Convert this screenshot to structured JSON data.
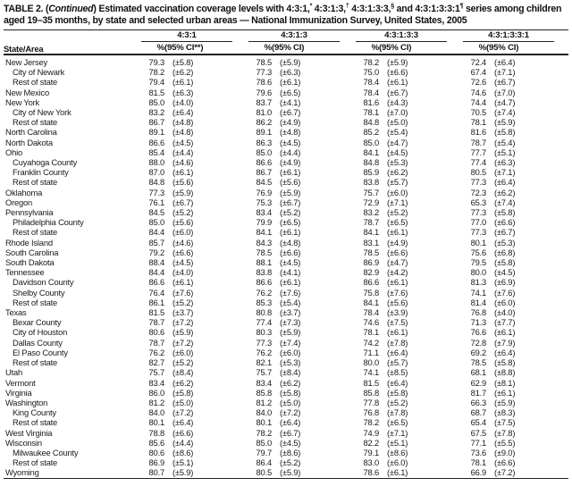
{
  "table": {
    "title": {
      "label_prefix": "TABLE 2. (",
      "continued": "Continued",
      "after_paren": ") Estimated vaccination coverage levels with ",
      "series": [
        {
          "text": "4:3:1,",
          "sup": "*"
        },
        {
          "text": " 4:3:1:3,",
          "sup": "†"
        },
        {
          "text": " 4:3:1:3:3,",
          "sup": "§"
        },
        {
          "text": " and 4:3:1:3:3:1",
          "sup": "¶"
        }
      ],
      "tail": " series among children aged 19–35 months, by state and selected urban areas — National Immunization Survey, United States, 2005"
    },
    "column_groups": [
      "4:3:1",
      "4:3:1:3",
      "4:3:1:3:3",
      "4:3:1:3:3:1"
    ],
    "subheaders": {
      "state_area": "State/Area",
      "pct": "%",
      "ci_first": "(95% CI**)",
      "ci": "(95% CI)"
    },
    "rows": [
      {
        "label": "New Jersey",
        "indent": 0,
        "values": [
          "79.3",
          "(±5.8)",
          "78.5",
          "(±5.9)",
          "78.2",
          "(±5.9)",
          "72.4",
          "(±6.4)"
        ]
      },
      {
        "label": "City of Newark",
        "indent": 1,
        "values": [
          "78.2",
          "(±6.2)",
          "77.3",
          "(±6.3)",
          "75.0",
          "(±6.6)",
          "67.4",
          "(±7.1)"
        ]
      },
      {
        "label": "Rest of state",
        "indent": 1,
        "values": [
          "79.4",
          "(±6.1)",
          "78.6",
          "(±6.1)",
          "78.4",
          "(±6.1)",
          "72.6",
          "(±6.7)"
        ]
      },
      {
        "label": "New Mexico",
        "indent": 0,
        "values": [
          "81.5",
          "(±6.3)",
          "79.6",
          "(±6.5)",
          "78.4",
          "(±6.7)",
          "74.6",
          "(±7.0)"
        ]
      },
      {
        "label": "New York",
        "indent": 0,
        "values": [
          "85.0",
          "(±4.0)",
          "83.7",
          "(±4.1)",
          "81.6",
          "(±4.3)",
          "74.4",
          "(±4.7)"
        ]
      },
      {
        "label": "City of New York",
        "indent": 1,
        "values": [
          "83.2",
          "(±6.4)",
          "81.0",
          "(±6.7)",
          "78.1",
          "(±7.0)",
          "70.5",
          "(±7.4)"
        ]
      },
      {
        "label": "Rest of state",
        "indent": 1,
        "values": [
          "86.7",
          "(±4.8)",
          "86.2",
          "(±4.9)",
          "84.8",
          "(±5.0)",
          "78.1",
          "(±5.9)"
        ]
      },
      {
        "label": "North Carolina",
        "indent": 0,
        "values": [
          "89.1",
          "(±4.8)",
          "89.1",
          "(±4.8)",
          "85.2",
          "(±5.4)",
          "81.6",
          "(±5.8)"
        ]
      },
      {
        "label": "North Dakota",
        "indent": 0,
        "values": [
          "86.6",
          "(±4.5)",
          "86.3",
          "(±4.5)",
          "85.0",
          "(±4.7)",
          "78.7",
          "(±5.4)"
        ]
      },
      {
        "label": "Ohio",
        "indent": 0,
        "values": [
          "85.4",
          "(±4.4)",
          "85.0",
          "(±4.4)",
          "84.1",
          "(±4.5)",
          "77.7",
          "(±5.1)"
        ]
      },
      {
        "label": "Cuyahoga County",
        "indent": 1,
        "values": [
          "88.0",
          "(±4.6)",
          "86.6",
          "(±4.9)",
          "84.8",
          "(±5.3)",
          "77.4",
          "(±6.3)"
        ]
      },
      {
        "label": "Franklin County",
        "indent": 1,
        "values": [
          "87.0",
          "(±6.1)",
          "86.7",
          "(±6.1)",
          "85.9",
          "(±6.2)",
          "80.5",
          "(±7.1)"
        ]
      },
      {
        "label": "Rest of state",
        "indent": 1,
        "values": [
          "84.8",
          "(±5.6)",
          "84.5",
          "(±5.6)",
          "83.8",
          "(±5.7)",
          "77.3",
          "(±6.4)"
        ]
      },
      {
        "label": "Oklahoma",
        "indent": 0,
        "values": [
          "77.3",
          "(±5.9)",
          "76.9",
          "(±5.9)",
          "75.7",
          "(±6.0)",
          "72.3",
          "(±6.2)"
        ]
      },
      {
        "label": "Oregon",
        "indent": 0,
        "values": [
          "76.1",
          "(±6.7)",
          "75.3",
          "(±6.7)",
          "72.9",
          "(±7.1)",
          "65.3",
          "(±7.4)"
        ]
      },
      {
        "label": "Pennsylvania",
        "indent": 0,
        "values": [
          "84.5",
          "(±5.2)",
          "83.4",
          "(±5.2)",
          "83.2",
          "(±5.2)",
          "77.3",
          "(±5.8)"
        ]
      },
      {
        "label": "Philadelphia County",
        "indent": 1,
        "values": [
          "85.0",
          "(±5.6)",
          "79.9",
          "(±6.5)",
          "78.7",
          "(±6.5)",
          "77.0",
          "(±6.6)"
        ]
      },
      {
        "label": "Rest of state",
        "indent": 1,
        "values": [
          "84.4",
          "(±6.0)",
          "84.1",
          "(±6.1)",
          "84.1",
          "(±6.1)",
          "77.3",
          "(±6.7)"
        ]
      },
      {
        "label": "Rhode Island",
        "indent": 0,
        "values": [
          "85.7",
          "(±4.6)",
          "84.3",
          "(±4.8)",
          "83.1",
          "(±4.9)",
          "80.1",
          "(±5.3)"
        ]
      },
      {
        "label": "South Carolina",
        "indent": 0,
        "values": [
          "79.2",
          "(±6.6)",
          "78.5",
          "(±6.6)",
          "78.5",
          "(±6.6)",
          "75.6",
          "(±6.8)"
        ]
      },
      {
        "label": "South Dakota",
        "indent": 0,
        "values": [
          "88.4",
          "(±4.5)",
          "88.1",
          "(±4.5)",
          "86.9",
          "(±4.7)",
          "79.5",
          "(±5.8)"
        ]
      },
      {
        "label": "Tennessee",
        "indent": 0,
        "values": [
          "84.4",
          "(±4.0)",
          "83.8",
          "(±4.1)",
          "82.9",
          "(±4.2)",
          "80.0",
          "(±4.5)"
        ]
      },
      {
        "label": "Davidson County",
        "indent": 1,
        "values": [
          "86.6",
          "(±6.1)",
          "86.6",
          "(±6.1)",
          "86.6",
          "(±6.1)",
          "81.3",
          "(±6.9)"
        ]
      },
      {
        "label": "Shelby County",
        "indent": 1,
        "values": [
          "76.4",
          "(±7.6)",
          "76.2",
          "(±7.6)",
          "75.8",
          "(±7.6)",
          "74.1",
          "(±7.6)"
        ]
      },
      {
        "label": "Rest of state",
        "indent": 1,
        "values": [
          "86.1",
          "(±5.2)",
          "85.3",
          "(±5.4)",
          "84.1",
          "(±5.6)",
          "81.4",
          "(±6.0)"
        ]
      },
      {
        "label": "Texas",
        "indent": 0,
        "values": [
          "81.5",
          "(±3.7)",
          "80.8",
          "(±3.7)",
          "78.4",
          "(±3.9)",
          "76.8",
          "(±4.0)"
        ]
      },
      {
        "label": "Bexar County",
        "indent": 1,
        "values": [
          "78.7",
          "(±7.2)",
          "77.4",
          "(±7.3)",
          "74.6",
          "(±7.5)",
          "71.3",
          "(±7.7)"
        ]
      },
      {
        "label": "City of Houston",
        "indent": 1,
        "values": [
          "80.6",
          "(±5.9)",
          "80.3",
          "(±5.9)",
          "78.1",
          "(±6.1)",
          "76.6",
          "(±6.1)"
        ]
      },
      {
        "label": "Dallas County",
        "indent": 1,
        "values": [
          "78.7",
          "(±7.2)",
          "77.3",
          "(±7.4)",
          "74.2",
          "(±7.8)",
          "72.8",
          "(±7.9)"
        ]
      },
      {
        "label": "El Paso County",
        "indent": 1,
        "values": [
          "76.2",
          "(±6.0)",
          "76.2",
          "(±6.0)",
          "71.1",
          "(±6.4)",
          "69.2",
          "(±6.4)"
        ]
      },
      {
        "label": "Rest of state",
        "indent": 1,
        "values": [
          "82.7",
          "(±5.2)",
          "82.1",
          "(±5.3)",
          "80.0",
          "(±5.7)",
          "78.5",
          "(±5.8)"
        ]
      },
      {
        "label": "Utah",
        "indent": 0,
        "values": [
          "75.7",
          "(±8.4)",
          "75.7",
          "(±8.4)",
          "74.1",
          "(±8.5)",
          "68.1",
          "(±8.8)"
        ]
      },
      {
        "label": "Vermont",
        "indent": 0,
        "values": [
          "83.4",
          "(±6.2)",
          "83.4",
          "(±6.2)",
          "81.5",
          "(±6.4)",
          "62.9",
          "(±8.1)"
        ]
      },
      {
        "label": "Virginia",
        "indent": 0,
        "values": [
          "86.0",
          "(±5.8)",
          "85.8",
          "(±5.8)",
          "85.8",
          "(±5.8)",
          "81.7",
          "(±6.1)"
        ]
      },
      {
        "label": "Washington",
        "indent": 0,
        "values": [
          "81.2",
          "(±5.0)",
          "81.2",
          "(±5.0)",
          "77.8",
          "(±5.2)",
          "66.3",
          "(±5.9)"
        ]
      },
      {
        "label": "King County",
        "indent": 1,
        "values": [
          "84.0",
          "(±7.2)",
          "84.0",
          "(±7.2)",
          "76.8",
          "(±7.8)",
          "68.7",
          "(±8.3)"
        ]
      },
      {
        "label": "Rest of state",
        "indent": 1,
        "values": [
          "80.1",
          "(±6.4)",
          "80.1",
          "(±6.4)",
          "78.2",
          "(±6.5)",
          "65.4",
          "(±7.5)"
        ]
      },
      {
        "label": "West Virginia",
        "indent": 0,
        "values": [
          "78.8",
          "(±6.6)",
          "78.2",
          "(±6.7)",
          "74.9",
          "(±7.1)",
          "67.5",
          "(±7.8)"
        ]
      },
      {
        "label": "Wisconsin",
        "indent": 0,
        "values": [
          "85.6",
          "(±4.4)",
          "85.0",
          "(±4.5)",
          "82.2",
          "(±5.1)",
          "77.1",
          "(±5.5)"
        ]
      },
      {
        "label": "Milwaukee County",
        "indent": 1,
        "values": [
          "80.6",
          "(±8.6)",
          "79.7",
          "(±8.6)",
          "79.1",
          "(±8.6)",
          "73.6",
          "(±9.0)"
        ]
      },
      {
        "label": "Rest of state",
        "indent": 1,
        "values": [
          "86.9",
          "(±5.1)",
          "86.4",
          "(±5.2)",
          "83.0",
          "(±6.0)",
          "78.1",
          "(±6.6)"
        ]
      },
      {
        "label": "Wyoming",
        "indent": 0,
        "values": [
          "80.7",
          "(±5.9)",
          "80.5",
          "(±5.9)",
          "78.6",
          "(±6.1)",
          "66.9",
          "(±7.2)"
        ]
      }
    ]
  }
}
